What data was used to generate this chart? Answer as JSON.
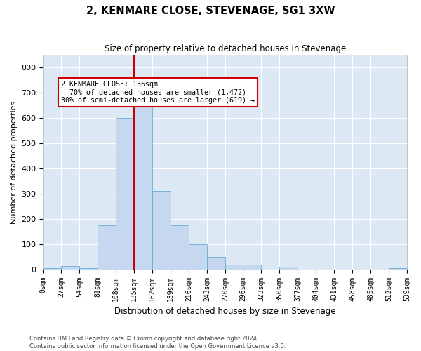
{
  "title": "2, KENMARE CLOSE, STEVENAGE, SG1 3XW",
  "subtitle": "Size of property relative to detached houses in Stevenage",
  "xlabel": "Distribution of detached houses by size in Stevenage",
  "ylabel": "Number of detached properties",
  "bar_color": "#c5d8f0",
  "bar_edge_color": "#6aaad4",
  "background_color": "#dde8f5",
  "grid_color": "#ffffff",
  "vline_color": "#cc0000",
  "vline_x": 135,
  "bin_edges": [
    0,
    27,
    54,
    81,
    108,
    135,
    162,
    189,
    216,
    243,
    270,
    296,
    323,
    350,
    377,
    404,
    431,
    458,
    485,
    512,
    539
  ],
  "bar_heights": [
    5,
    12,
    5,
    175,
    600,
    645,
    310,
    175,
    100,
    50,
    20,
    20,
    0,
    10,
    0,
    0,
    0,
    0,
    0,
    5
  ],
  "ylim": [
    0,
    850
  ],
  "yticks": [
    0,
    100,
    200,
    300,
    400,
    500,
    600,
    700,
    800
  ],
  "annotation_text": "2 KENMARE CLOSE: 136sqm\n← 70% of detached houses are smaller (1,472)\n30% of semi-detached houses are larger (619) →",
  "annotation_box_color": "#ffffff",
  "annotation_box_edge": "#cc0000",
  "footer_text": "Contains HM Land Registry data © Crown copyright and database right 2024.\nContains public sector information licensed under the Open Government Licence v3.0."
}
